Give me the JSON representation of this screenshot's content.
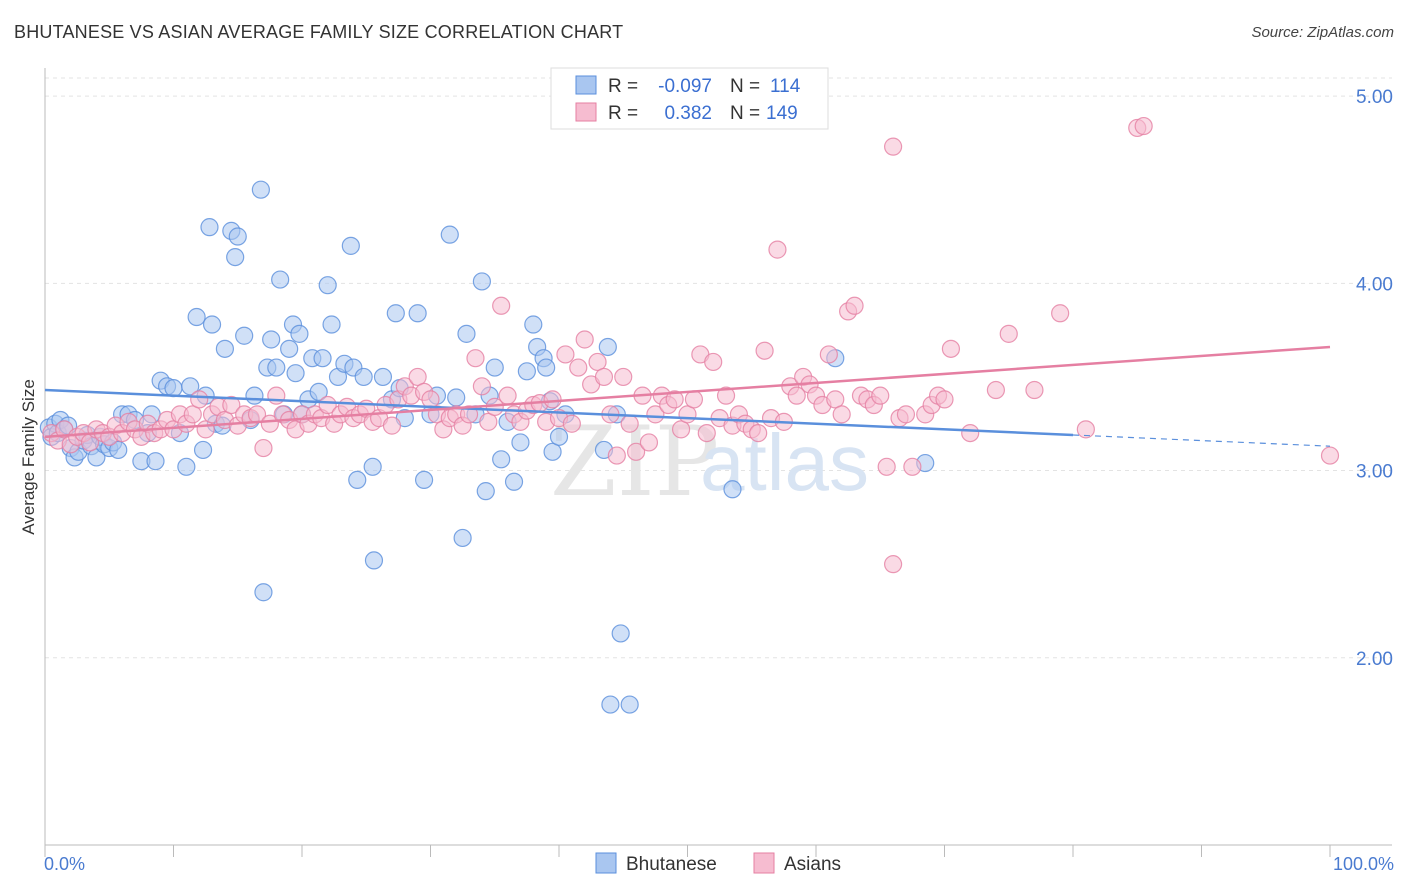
{
  "title": "BHUTANESE VS ASIAN AVERAGE FAMILY SIZE CORRELATION CHART",
  "source": "Source: ZipAtlas.com",
  "watermark": {
    "zip": "ZIP",
    "atlas": "atlas"
  },
  "legend": {
    "r_label": "R =",
    "n_label": "N =",
    "rows": [
      {
        "r": "-0.097",
        "n": "114",
        "color": "#a9c6f0",
        "stroke": "#5a8fdc"
      },
      {
        "r": "0.382",
        "n": "149",
        "color": "#f6bcd0",
        "stroke": "#e57fa2"
      }
    ]
  },
  "bottom_legend": [
    "Bhutanese",
    "Asians"
  ],
  "chart_data": {
    "type": "scatter",
    "title": "BHUTANESE VS ASIAN AVERAGE FAMILY SIZE CORRELATION CHART",
    "xlabel": "",
    "ylabel": "Average Family Size",
    "x_range": [
      0,
      100
    ],
    "y_range": [
      1.0,
      5.15
    ],
    "x_tick_labels": [
      "0.0%",
      "100.0%"
    ],
    "y_ticks": [
      2.0,
      3.0,
      4.0,
      5.0
    ],
    "y_tick_labels": [
      "2.00",
      "3.00",
      "4.00",
      "5.00"
    ],
    "grid": true,
    "legend_position": "top-center",
    "series": [
      {
        "name": "Bhutanese",
        "color": "#5a8fdc",
        "fill": "#a9c6f0",
        "trend": {
          "x0": 0,
          "y0": 3.43,
          "x1": 80,
          "y1": 3.19,
          "dash_to": 100,
          "dash_y": 3.13
        },
        "points": [
          [
            0.3,
            3.23
          ],
          [
            0.5,
            3.18
          ],
          [
            0.8,
            3.25
          ],
          [
            1,
            3.2
          ],
          [
            1.2,
            3.27
          ],
          [
            1.5,
            3.22
          ],
          [
            1.8,
            3.24
          ],
          [
            2,
            3.12
          ],
          [
            2.3,
            3.07
          ],
          [
            2.6,
            3.1
          ],
          [
            3,
            3.16
          ],
          [
            3.3,
            3.19
          ],
          [
            3.6,
            3.13
          ],
          [
            4,
            3.07
          ],
          [
            4.3,
            3.18
          ],
          [
            4.6,
            3.14
          ],
          [
            5,
            3.12
          ],
          [
            5.3,
            3.15
          ],
          [
            5.7,
            3.11
          ],
          [
            6,
            3.3
          ],
          [
            6.5,
            3.3
          ],
          [
            7,
            3.27
          ],
          [
            7.5,
            3.05
          ],
          [
            8,
            3.2
          ],
          [
            8.3,
            3.3
          ],
          [
            8.6,
            3.05
          ],
          [
            9,
            3.48
          ],
          [
            9.5,
            3.45
          ],
          [
            10,
            3.44
          ],
          [
            10.5,
            3.2
          ],
          [
            11,
            3.02
          ],
          [
            11.3,
            3.45
          ],
          [
            11.8,
            3.82
          ],
          [
            12.3,
            3.11
          ],
          [
            12.5,
            3.4
          ],
          [
            12.8,
            4.3
          ],
          [
            13,
            3.78
          ],
          [
            13.3,
            3.25
          ],
          [
            13.8,
            3.24
          ],
          [
            14,
            3.65
          ],
          [
            14.5,
            4.28
          ],
          [
            14.8,
            4.14
          ],
          [
            15,
            4.25
          ],
          [
            15.5,
            3.72
          ],
          [
            16,
            3.27
          ],
          [
            16.3,
            3.4
          ],
          [
            16.8,
            4.5
          ],
          [
            17.3,
            3.55
          ],
          [
            17.6,
            3.7
          ],
          [
            18,
            3.55
          ],
          [
            18.3,
            4.02
          ],
          [
            18.6,
            3.3
          ],
          [
            19,
            3.65
          ],
          [
            19.3,
            3.78
          ],
          [
            19.5,
            3.52
          ],
          [
            19.8,
            3.73
          ],
          [
            20,
            3.3
          ],
          [
            20.5,
            3.38
          ],
          [
            20.8,
            3.6
          ],
          [
            21.3,
            3.42
          ],
          [
            21.6,
            3.6
          ],
          [
            22,
            3.99
          ],
          [
            22.3,
            3.78
          ],
          [
            22.8,
            3.5
          ],
          [
            23.3,
            3.57
          ],
          [
            23.8,
            4.2
          ],
          [
            24,
            3.55
          ],
          [
            24.3,
            2.95
          ],
          [
            24.8,
            3.5
          ],
          [
            25.5,
            3.02
          ],
          [
            25.6,
            2.52
          ],
          [
            26.3,
            3.5
          ],
          [
            27,
            3.38
          ],
          [
            27.3,
            3.84
          ],
          [
            27.6,
            3.44
          ],
          [
            28,
            3.28
          ],
          [
            29,
            3.84
          ],
          [
            29.5,
            2.95
          ],
          [
            30,
            3.3
          ],
          [
            30.5,
            3.4
          ],
          [
            31.5,
            4.26
          ],
          [
            32,
            3.39
          ],
          [
            32.5,
            2.64
          ],
          [
            32.8,
            3.73
          ],
          [
            33.5,
            3.3
          ],
          [
            34,
            4.01
          ],
          [
            34.3,
            2.89
          ],
          [
            34.6,
            3.4
          ],
          [
            35,
            3.55
          ],
          [
            35.5,
            3.06
          ],
          [
            36,
            3.26
          ],
          [
            36.5,
            2.94
          ],
          [
            37,
            3.15
          ],
          [
            37.5,
            3.53
          ],
          [
            38,
            3.78
          ],
          [
            38.3,
            3.66
          ],
          [
            38.8,
            3.6
          ],
          [
            39,
            3.55
          ],
          [
            39.3,
            3.37
          ],
          [
            39.5,
            3.1
          ],
          [
            40,
            3.18
          ],
          [
            40.5,
            3.3
          ],
          [
            43.5,
            3.11
          ],
          [
            43.8,
            3.66
          ],
          [
            44.5,
            3.3
          ],
          [
            44,
            1.75
          ],
          [
            45.5,
            1.75
          ],
          [
            44.8,
            2.13
          ],
          [
            53.5,
            2.9
          ],
          [
            61.5,
            3.6
          ],
          [
            68.5,
            3.04
          ],
          [
            17,
            2.35
          ]
        ]
      },
      {
        "name": "Asians",
        "color": "#e57fa2",
        "fill": "#f6bcd0",
        "trend": {
          "x0": 0,
          "y0": 3.18,
          "x1": 100,
          "y1": 3.66
        },
        "points": [
          [
            0.5,
            3.2
          ],
          [
            1,
            3.16
          ],
          [
            1.5,
            3.22
          ],
          [
            2,
            3.14
          ],
          [
            2.5,
            3.18
          ],
          [
            3,
            3.2
          ],
          [
            3.5,
            3.15
          ],
          [
            4,
            3.22
          ],
          [
            4.5,
            3.2
          ],
          [
            5,
            3.18
          ],
          [
            5.5,
            3.24
          ],
          [
            6,
            3.2
          ],
          [
            6.5,
            3.26
          ],
          [
            7,
            3.22
          ],
          [
            7.5,
            3.18
          ],
          [
            8,
            3.25
          ],
          [
            8.5,
            3.2
          ],
          [
            9,
            3.22
          ],
          [
            9.5,
            3.27
          ],
          [
            10,
            3.22
          ],
          [
            10.5,
            3.3
          ],
          [
            11,
            3.25
          ],
          [
            11.5,
            3.3
          ],
          [
            12,
            3.38
          ],
          [
            12.5,
            3.22
          ],
          [
            13,
            3.3
          ],
          [
            13.5,
            3.34
          ],
          [
            14,
            3.27
          ],
          [
            14.5,
            3.35
          ],
          [
            15,
            3.24
          ],
          [
            15.5,
            3.3
          ],
          [
            16,
            3.28
          ],
          [
            16.5,
            3.3
          ],
          [
            17,
            3.12
          ],
          [
            17.5,
            3.25
          ],
          [
            18,
            3.4
          ],
          [
            18.5,
            3.3
          ],
          [
            19,
            3.27
          ],
          [
            19.5,
            3.22
          ],
          [
            20,
            3.3
          ],
          [
            20.5,
            3.25
          ],
          [
            21,
            3.3
          ],
          [
            21.5,
            3.28
          ],
          [
            22,
            3.35
          ],
          [
            22.5,
            3.25
          ],
          [
            23,
            3.3
          ],
          [
            23.5,
            3.34
          ],
          [
            24,
            3.28
          ],
          [
            24.5,
            3.3
          ],
          [
            25,
            3.33
          ],
          [
            25.5,
            3.26
          ],
          [
            26,
            3.28
          ],
          [
            26.5,
            3.35
          ],
          [
            27,
            3.24
          ],
          [
            27.5,
            3.38
          ],
          [
            28,
            3.45
          ],
          [
            28.5,
            3.4
          ],
          [
            29,
            3.5
          ],
          [
            29.5,
            3.42
          ],
          [
            30,
            3.38
          ],
          [
            30.5,
            3.3
          ],
          [
            31,
            3.22
          ],
          [
            31.5,
            3.28
          ],
          [
            32,
            3.3
          ],
          [
            32.5,
            3.24
          ],
          [
            33,
            3.3
          ],
          [
            33.5,
            3.6
          ],
          [
            34,
            3.45
          ],
          [
            34.5,
            3.26
          ],
          [
            35,
            3.34
          ],
          [
            35.5,
            3.88
          ],
          [
            36,
            3.4
          ],
          [
            36.5,
            3.3
          ],
          [
            37,
            3.26
          ],
          [
            37.5,
            3.32
          ],
          [
            38,
            3.35
          ],
          [
            38.5,
            3.36
          ],
          [
            39,
            3.26
          ],
          [
            39.5,
            3.38
          ],
          [
            40,
            3.28
          ],
          [
            40.5,
            3.62
          ],
          [
            41,
            3.25
          ],
          [
            41.5,
            3.55
          ],
          [
            42,
            3.7
          ],
          [
            42.5,
            3.46
          ],
          [
            43,
            3.58
          ],
          [
            43.5,
            3.5
          ],
          [
            44,
            3.3
          ],
          [
            44.5,
            3.08
          ],
          [
            45,
            3.5
          ],
          [
            45.5,
            3.25
          ],
          [
            46,
            3.1
          ],
          [
            46.5,
            3.4
          ],
          [
            47,
            3.15
          ],
          [
            47.5,
            3.3
          ],
          [
            48,
            3.4
          ],
          [
            48.5,
            3.35
          ],
          [
            49,
            3.38
          ],
          [
            49.5,
            3.22
          ],
          [
            50,
            3.3
          ],
          [
            50.5,
            3.38
          ],
          [
            51,
            3.62
          ],
          [
            51.5,
            3.2
          ],
          [
            52,
            3.58
          ],
          [
            52.5,
            3.28
          ],
          [
            53,
            3.4
          ],
          [
            53.5,
            3.24
          ],
          [
            54,
            3.3
          ],
          [
            54.5,
            3.25
          ],
          [
            55,
            3.22
          ],
          [
            55.5,
            3.2
          ],
          [
            56,
            3.64
          ],
          [
            56.5,
            3.28
          ],
          [
            57,
            4.18
          ],
          [
            57.5,
            3.26
          ],
          [
            58,
            3.45
          ],
          [
            58.5,
            3.4
          ],
          [
            59,
            3.5
          ],
          [
            59.5,
            3.46
          ],
          [
            60,
            3.4
          ],
          [
            60.5,
            3.35
          ],
          [
            61,
            3.62
          ],
          [
            61.5,
            3.38
          ],
          [
            62,
            3.3
          ],
          [
            62.5,
            3.85
          ],
          [
            63,
            3.88
          ],
          [
            63.5,
            3.4
          ],
          [
            64,
            3.38
          ],
          [
            64.5,
            3.35
          ],
          [
            65,
            3.4
          ],
          [
            65.5,
            3.02
          ],
          [
            66,
            4.73
          ],
          [
            66.5,
            3.28
          ],
          [
            67,
            3.3
          ],
          [
            67.5,
            3.02
          ],
          [
            68.5,
            3.3
          ],
          [
            69,
            3.35
          ],
          [
            69.5,
            3.4
          ],
          [
            70,
            3.38
          ],
          [
            70.5,
            3.65
          ],
          [
            72,
            3.2
          ],
          [
            74,
            3.43
          ],
          [
            75,
            3.73
          ],
          [
            77,
            3.43
          ],
          [
            79,
            3.84
          ],
          [
            81,
            3.22
          ],
          [
            85,
            4.83
          ],
          [
            85.5,
            4.84
          ],
          [
            66,
            2.5
          ],
          [
            100,
            3.08
          ]
        ]
      }
    ]
  }
}
